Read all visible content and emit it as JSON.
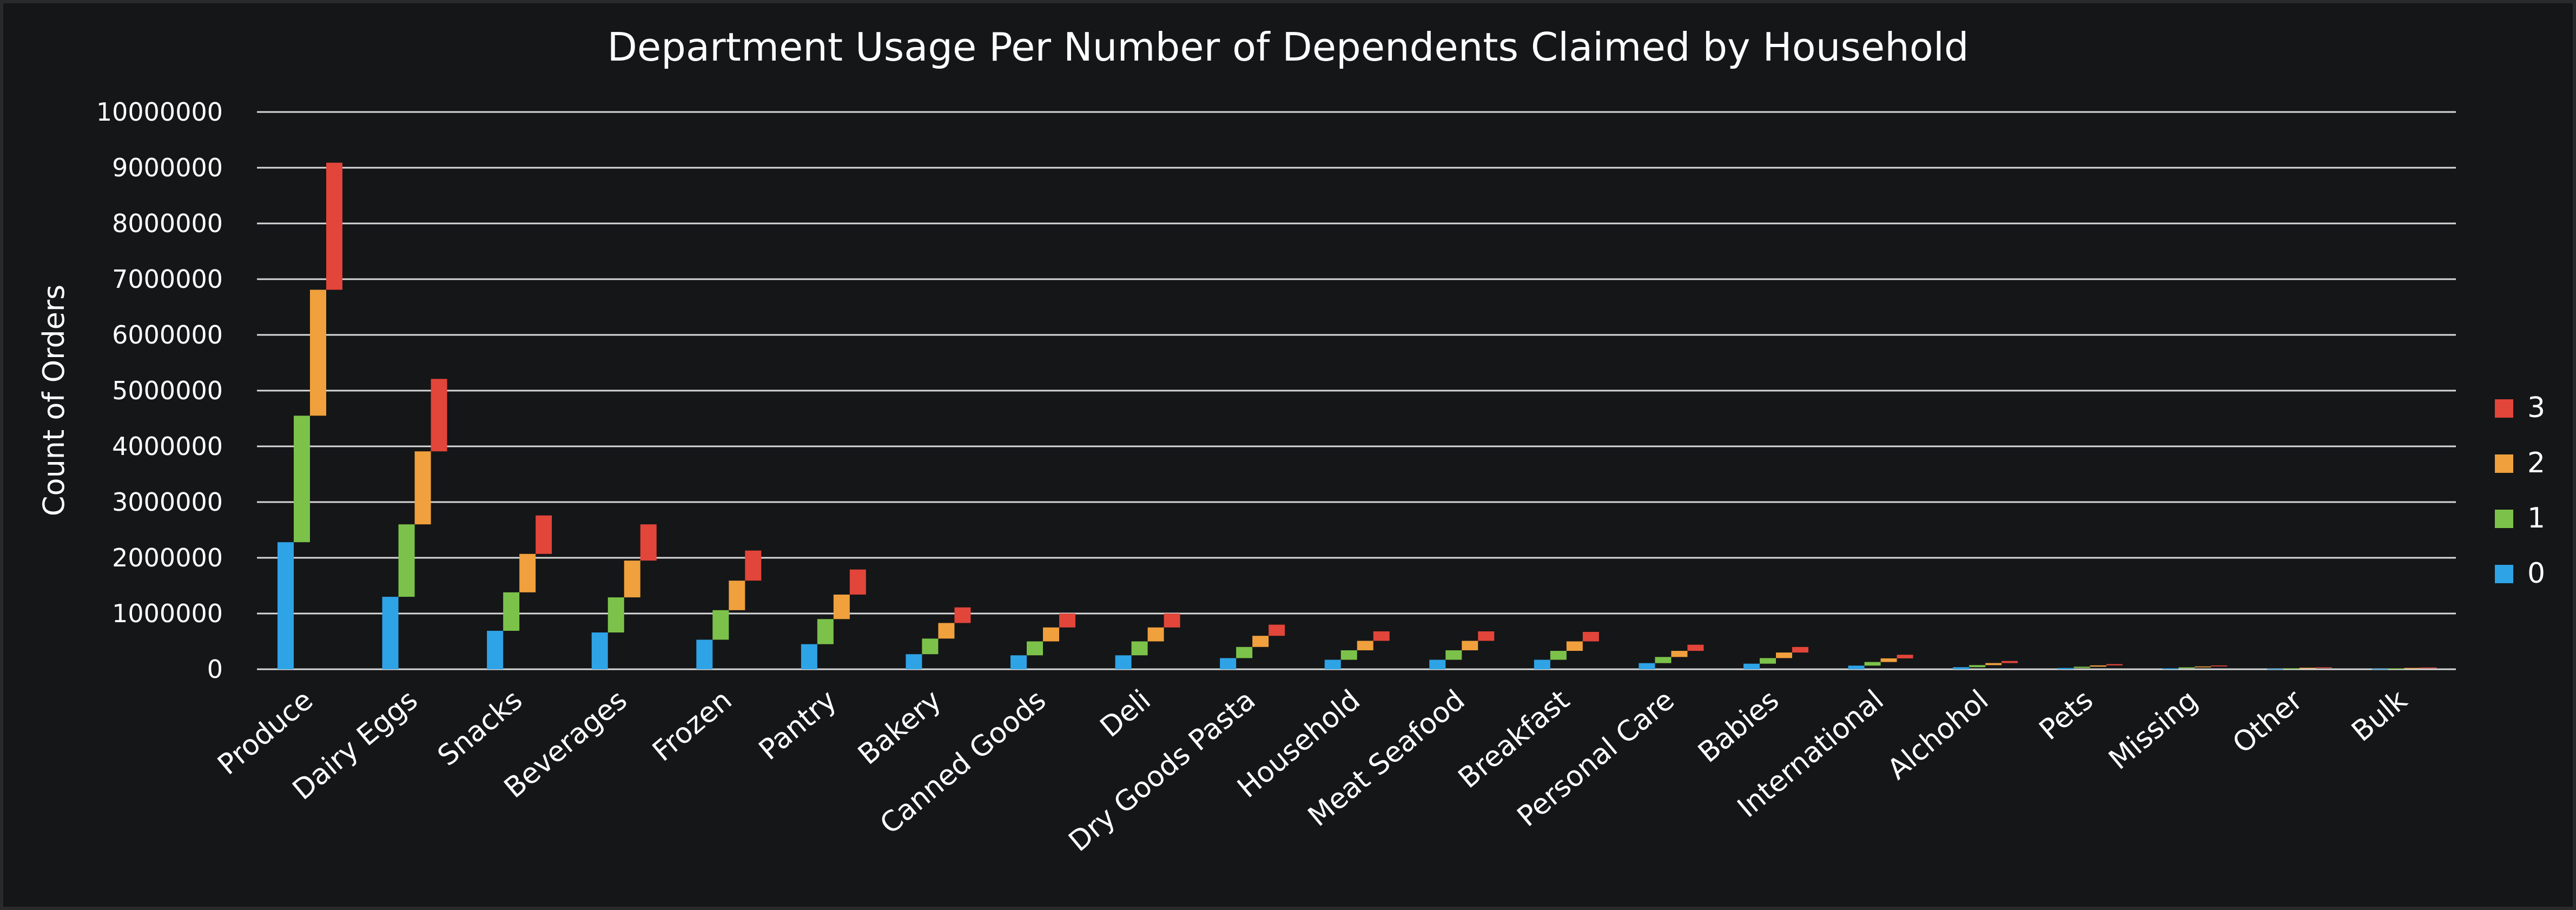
{
  "chart_data": {
    "type": "bar",
    "title": "Department Usage Per Number of Dependents Claimed by Household",
    "ylabel": "Count of Orders",
    "xlabel": "",
    "ylim": [
      0,
      10000000
    ],
    "yticks": [
      "0",
      "1000000",
      "2000000",
      "3000000",
      "4000000",
      "5000000",
      "6000000",
      "7000000",
      "8000000",
      "9000000",
      "10000000"
    ],
    "grid": true,
    "legend_position": "right",
    "categories": [
      "Produce",
      "Dairy Eggs",
      "Snacks",
      "Beverages",
      "Frozen",
      "Pantry",
      "Bakery",
      "Canned Goods",
      "Deli",
      "Dry Goods Pasta",
      "Household",
      "Meat Seafood",
      "Breakfast",
      "Personal Care",
      "Babies",
      "International",
      "Alchohol",
      "Pets",
      "Missing",
      "Other",
      "Bulk"
    ],
    "series": [
      {
        "name": "0",
        "color": "#2ea3e6",
        "values": [
          2280000,
          1300000,
          690000,
          660000,
          530000,
          450000,
          270000,
          250000,
          250000,
          200000,
          170000,
          170000,
          170000,
          110000,
          100000,
          65000,
          37000,
          23000,
          17000,
          9000,
          8000
        ]
      },
      {
        "name": "1",
        "color": "#7cc24a",
        "values": [
          2270000,
          1300000,
          690000,
          630000,
          530000,
          450000,
          280000,
          250000,
          250000,
          200000,
          170000,
          170000,
          160000,
          110000,
          100000,
          65000,
          37000,
          23000,
          17000,
          9000,
          8000
        ]
      },
      {
        "name": "2",
        "color": "#f0a03c",
        "values": [
          2260000,
          1310000,
          690000,
          660000,
          530000,
          440000,
          280000,
          250000,
          250000,
          200000,
          170000,
          170000,
          170000,
          110000,
          100000,
          65000,
          37000,
          23000,
          17000,
          9000,
          8000
        ]
      },
      {
        "name": "3",
        "color": "#e2453a",
        "values": [
          2280000,
          1300000,
          690000,
          650000,
          540000,
          450000,
          280000,
          250000,
          250000,
          200000,
          170000,
          170000,
          170000,
          110000,
          100000,
          65000,
          37000,
          23000,
          17000,
          9000,
          8000
        ]
      }
    ]
  }
}
